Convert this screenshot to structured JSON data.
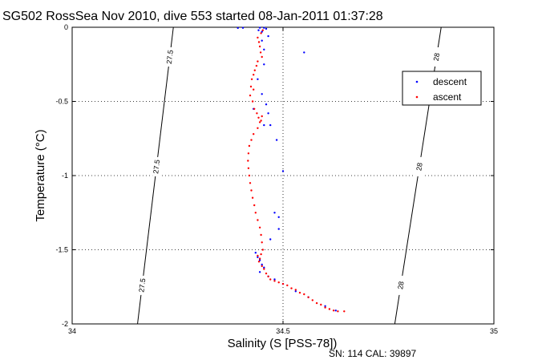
{
  "chart_data": {
    "type": "scatter",
    "title": "SG502 RossSea Nov 2010, dive 553 started 08-Jan-2011 01:37:28",
    "xlabel": "Salinity (S [PSS-78])",
    "ylabel": "Temperature (°C)",
    "xlim": [
      34,
      35
    ],
    "ylim": [
      -2,
      0
    ],
    "x_ticks": [
      "34",
      "34.5",
      "35"
    ],
    "y_ticks": [
      "0",
      "-0.5",
      "-1",
      "-1.5",
      "-2"
    ],
    "grid": "dotted",
    "legend_position": "top-right",
    "footer": "SN: 114  CAL: 39897",
    "isopycnals": [
      {
        "label": "27.5",
        "salinity_at_top": 34.24,
        "salinity_at_bottom": 34.155
      },
      {
        "label": "28",
        "salinity_at_top": 34.875,
        "salinity_at_bottom": 34.765
      }
    ],
    "series": [
      {
        "name": "descent",
        "color": "#0000ff",
        "points": [
          [
            34.393,
            -0.005
          ],
          [
            34.405,
            -0.004
          ],
          [
            34.445,
            -0.003
          ],
          [
            34.455,
            -0.004
          ],
          [
            34.46,
            -0.01
          ],
          [
            34.442,
            -0.02
          ],
          [
            34.45,
            -0.03
          ],
          [
            34.465,
            -0.06
          ],
          [
            34.45,
            -0.09
          ],
          [
            34.455,
            -0.15
          ],
          [
            34.55,
            -0.17
          ],
          [
            34.455,
            -0.25
          ],
          [
            34.44,
            -0.35
          ],
          [
            34.45,
            -0.45
          ],
          [
            34.46,
            -0.52
          ],
          [
            34.43,
            -0.55
          ],
          [
            34.465,
            -0.58
          ],
          [
            34.455,
            -0.66
          ],
          [
            34.47,
            -0.66
          ],
          [
            34.485,
            -0.76
          ],
          [
            34.5,
            -0.97
          ],
          [
            34.48,
            -1.25
          ],
          [
            34.49,
            -1.28
          ],
          [
            34.49,
            -1.36
          ],
          [
            34.47,
            -1.43
          ],
          [
            34.435,
            -1.52
          ],
          [
            34.44,
            -1.55
          ],
          [
            34.445,
            -1.57
          ],
          [
            34.45,
            -1.6
          ],
          [
            34.455,
            -1.62
          ],
          [
            34.445,
            -1.65
          ],
          [
            34.465,
            -1.68
          ],
          [
            34.48,
            -1.7
          ],
          [
            34.5,
            -1.73
          ],
          [
            34.53,
            -1.78
          ],
          [
            34.56,
            -1.82
          ],
          [
            34.6,
            -1.88
          ],
          [
            34.625,
            -1.91
          ]
        ]
      },
      {
        "name": "ascent",
        "color": "#ff0000",
        "points": [
          [
            34.452,
            -0.02
          ],
          [
            34.448,
            -0.04
          ],
          [
            34.44,
            -0.07
          ],
          [
            34.443,
            -0.1
          ],
          [
            34.445,
            -0.13
          ],
          [
            34.447,
            -0.17
          ],
          [
            34.45,
            -0.2
          ],
          [
            34.44,
            -0.23
          ],
          [
            34.437,
            -0.26
          ],
          [
            34.433,
            -0.29
          ],
          [
            34.43,
            -0.32
          ],
          [
            34.426,
            -0.35
          ],
          [
            34.424,
            -0.4
          ],
          [
            34.43,
            -0.42
          ],
          [
            34.422,
            -0.46
          ],
          [
            34.428,
            -0.5
          ],
          [
            34.432,
            -0.55
          ],
          [
            34.438,
            -0.58
          ],
          [
            34.442,
            -0.61
          ],
          [
            34.448,
            -0.63
          ],
          [
            34.45,
            -0.6
          ],
          [
            34.445,
            -0.64
          ],
          [
            34.44,
            -0.68
          ],
          [
            34.43,
            -0.72
          ],
          [
            34.425,
            -0.76
          ],
          [
            34.42,
            -0.8
          ],
          [
            34.418,
            -0.85
          ],
          [
            34.417,
            -0.9
          ],
          [
            34.418,
            -0.95
          ],
          [
            34.42,
            -1.0
          ],
          [
            34.422,
            -1.05
          ],
          [
            34.425,
            -1.1
          ],
          [
            34.428,
            -1.15
          ],
          [
            34.432,
            -1.2
          ],
          [
            34.435,
            -1.25
          ],
          [
            34.44,
            -1.3
          ],
          [
            34.445,
            -1.35
          ],
          [
            34.448,
            -1.4
          ],
          [
            34.45,
            -1.45
          ],
          [
            34.452,
            -1.5
          ],
          [
            34.448,
            -1.53
          ],
          [
            34.445,
            -1.56
          ],
          [
            34.44,
            -1.54
          ],
          [
            34.443,
            -1.58
          ],
          [
            34.45,
            -1.61
          ],
          [
            34.455,
            -1.63
          ],
          [
            34.46,
            -1.66
          ],
          [
            34.465,
            -1.68
          ],
          [
            34.47,
            -1.7
          ],
          [
            34.48,
            -1.71
          ],
          [
            34.49,
            -1.72
          ],
          [
            34.5,
            -1.73
          ],
          [
            34.51,
            -1.74
          ],
          [
            34.52,
            -1.76
          ],
          [
            34.53,
            -1.77
          ],
          [
            34.54,
            -1.79
          ],
          [
            34.55,
            -1.8
          ],
          [
            34.56,
            -1.82
          ],
          [
            34.57,
            -1.84
          ],
          [
            34.58,
            -1.86
          ],
          [
            34.59,
            -1.87
          ],
          [
            34.6,
            -1.89
          ],
          [
            34.61,
            -1.9
          ],
          [
            34.62,
            -1.91
          ],
          [
            34.63,
            -1.915
          ],
          [
            34.645,
            -1.915
          ]
        ]
      }
    ]
  }
}
